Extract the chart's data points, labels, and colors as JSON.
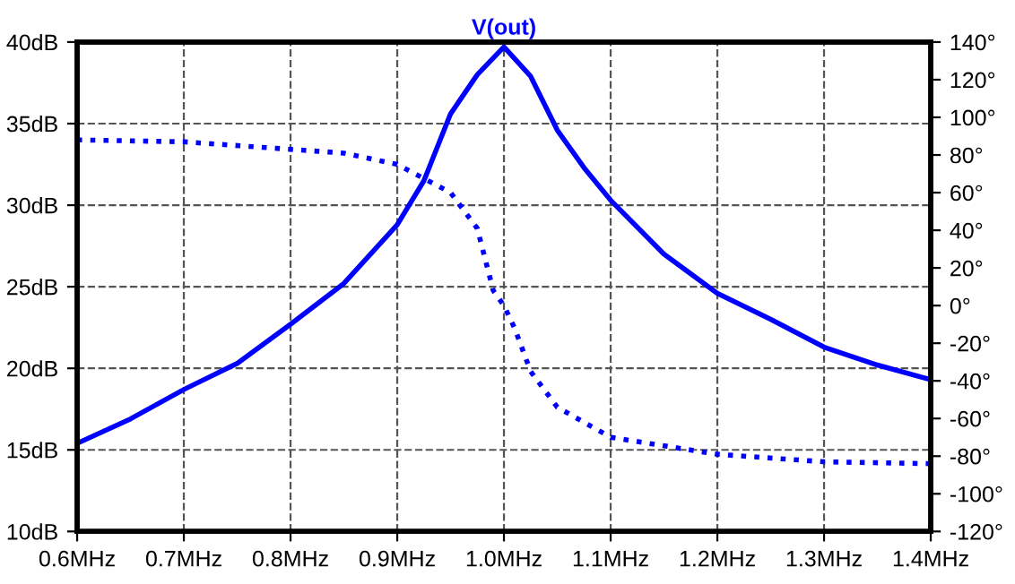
{
  "chart_data": {
    "type": "line",
    "title": "V(out)",
    "grid": true,
    "xlim": [
      0.6,
      1.4
    ],
    "xticks": [
      {
        "value": 0.6,
        "label": "0.6MHz"
      },
      {
        "value": 0.7,
        "label": "0.7MHz"
      },
      {
        "value": 0.8,
        "label": "0.8MHz"
      },
      {
        "value": 0.9,
        "label": "0.9MHz"
      },
      {
        "value": 1.0,
        "label": "1.0MHz"
      },
      {
        "value": 1.1,
        "label": "1.1MHz"
      },
      {
        "value": 1.2,
        "label": "1.2MHz"
      },
      {
        "value": 1.3,
        "label": "1.3MHz"
      },
      {
        "value": 1.4,
        "label": "1.4MHz"
      }
    ],
    "ylim": [
      10,
      40
    ],
    "yticks": [
      {
        "value": 10,
        "label": "10dB"
      },
      {
        "value": 15,
        "label": "15dB"
      },
      {
        "value": 20,
        "label": "20dB"
      },
      {
        "value": 25,
        "label": "25dB"
      },
      {
        "value": 30,
        "label": "30dB"
      },
      {
        "value": 35,
        "label": "35dB"
      },
      {
        "value": 40,
        "label": "40dB"
      }
    ],
    "y2lim": [
      -120,
      140
    ],
    "y2ticks": [
      {
        "value": -120,
        "label": "-120°"
      },
      {
        "value": -100,
        "label": "-100°"
      },
      {
        "value": -80,
        "label": "-80°"
      },
      {
        "value": -60,
        "label": "-60°"
      },
      {
        "value": -40,
        "label": "-40°"
      },
      {
        "value": -20,
        "label": "-20°"
      },
      {
        "value": 0,
        "label": "0°"
      },
      {
        "value": 20,
        "label": "20°"
      },
      {
        "value": 40,
        "label": "40°"
      },
      {
        "value": 60,
        "label": "60°"
      },
      {
        "value": 80,
        "label": "80°"
      },
      {
        "value": 100,
        "label": "100°"
      },
      {
        "value": 120,
        "label": "120°"
      },
      {
        "value": 140,
        "label": "140°"
      }
    ],
    "series": [
      {
        "color": "#0000ff",
        "line_style": "solid",
        "x": [
          0.6,
          0.65,
          0.7,
          0.75,
          0.8,
          0.85,
          0.9,
          0.925,
          0.95,
          0.975,
          1.0,
          1.025,
          1.05,
          1.075,
          1.1,
          1.15,
          1.2,
          1.25,
          1.3,
          1.35,
          1.4
        ],
        "values": [
          15.4,
          16.9,
          18.7,
          20.3,
          22.7,
          25.2,
          28.8,
          31.5,
          35.6,
          38.0,
          39.7,
          37.9,
          34.6,
          32.3,
          30.3,
          27.0,
          24.6,
          23.0,
          21.3,
          20.2,
          19.3
        ]
      },
      {
        "color": "#0000ff",
        "line_style": "dotted",
        "axis": "y2",
        "x": [
          0.6,
          0.7,
          0.8,
          0.85,
          0.9,
          0.95,
          0.975,
          0.99,
          1.0,
          1.01,
          1.025,
          1.05,
          1.1,
          1.2,
          1.3,
          1.4
        ],
        "values": [
          88,
          87,
          83,
          81,
          75,
          60,
          41,
          8,
          0,
          -12,
          -35,
          -54,
          -70,
          -79,
          -83,
          -84
        ]
      }
    ]
  }
}
